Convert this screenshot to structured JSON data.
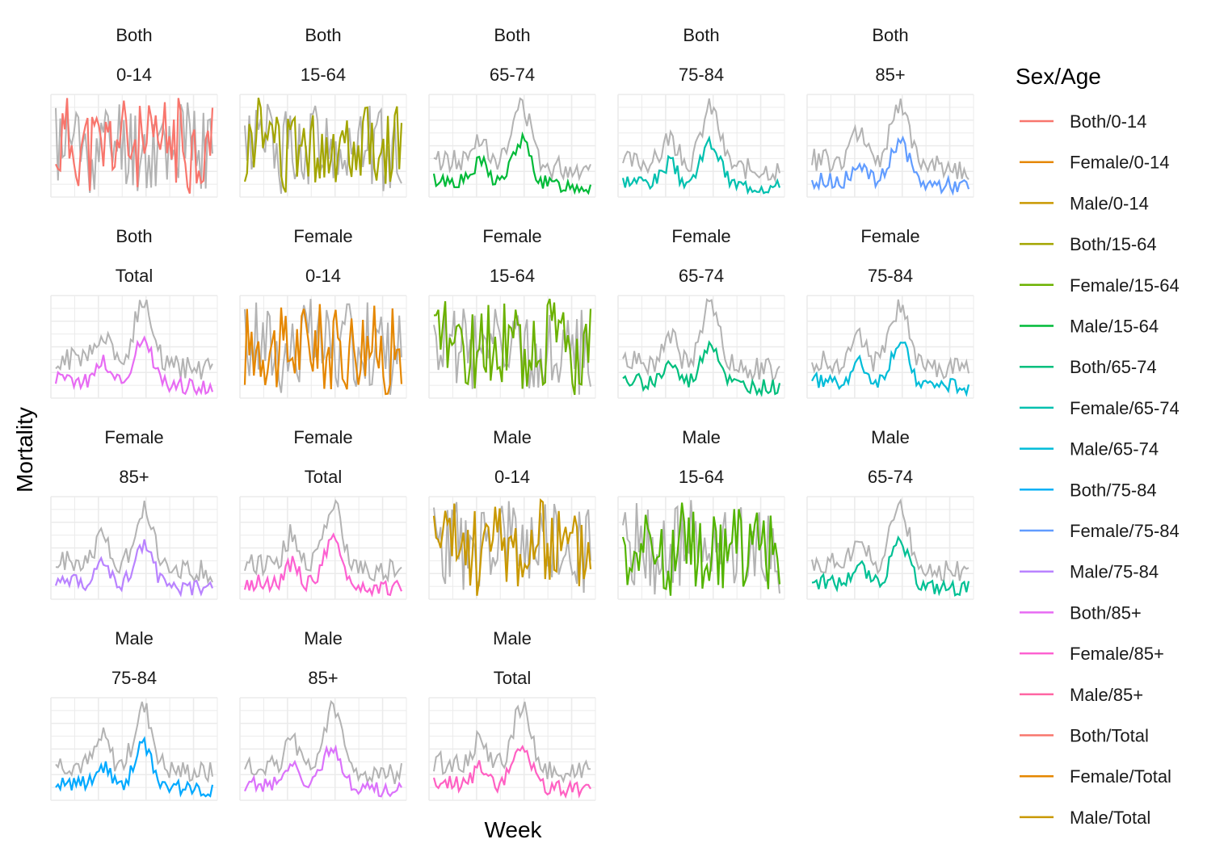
{
  "chart_data": {
    "type": "line",
    "xlabel": "Week",
    "ylabel": "Mortality",
    "grid": true,
    "legend": {
      "title": "Sex/Age",
      "position": "right",
      "entries": [
        {
          "label": "Both/0-14",
          "color": "#F8766D"
        },
        {
          "label": "Female/0-14",
          "color": "#E58700"
        },
        {
          "label": "Male/0-14",
          "color": "#C99800"
        },
        {
          "label": "Both/15-64",
          "color": "#A3A500"
        },
        {
          "label": "Female/15-64",
          "color": "#6BB100"
        },
        {
          "label": "Male/15-64",
          "color": "#00BA38"
        },
        {
          "label": "Both/65-74",
          "color": "#00BF7D"
        },
        {
          "label": "Female/65-74",
          "color": "#00C0AF"
        },
        {
          "label": "Male/65-74",
          "color": "#00BCD8"
        },
        {
          "label": "Both/75-84",
          "color": "#00B0F6"
        },
        {
          "label": "Female/75-84",
          "color": "#619CFF"
        },
        {
          "label": "Male/75-84",
          "color": "#B983FF"
        },
        {
          "label": "Both/85+",
          "color": "#E76BF3"
        },
        {
          "label": "Female/85+",
          "color": "#FD61D1"
        },
        {
          "label": "Male/85+",
          "color": "#FF67A4"
        },
        {
          "label": "Both/Total",
          "color": "#F8766D"
        },
        {
          "label": "Female/Total",
          "color": "#E58700"
        },
        {
          "label": "Male/Total",
          "color": "#C99800"
        }
      ]
    },
    "reference_series_color": "#B3B3B3",
    "panels": [
      {
        "strip1": "Both",
        "strip2": "0-14",
        "color": "#F8766D",
        "pattern": "noisy",
        "seed": 11
      },
      {
        "strip1": "Both",
        "strip2": "15-64",
        "color": "#A3A500",
        "pattern": "noisy",
        "seed": 12
      },
      {
        "strip1": "Both",
        "strip2": "65-74",
        "color": "#00BA38",
        "pattern": "seasonal",
        "seed": 13
      },
      {
        "strip1": "Both",
        "strip2": "75-84",
        "color": "#00C0AF",
        "pattern": "seasonal",
        "seed": 14
      },
      {
        "strip1": "Both",
        "strip2": "85+",
        "color": "#619CFF",
        "pattern": "seasonal",
        "seed": 15
      },
      {
        "strip1": "Both",
        "strip2": "Total",
        "color": "#E76BF3",
        "pattern": "seasonal",
        "seed": 16
      },
      {
        "strip1": "Female",
        "strip2": "0-14",
        "color": "#E58700",
        "pattern": "noisy",
        "seed": 17
      },
      {
        "strip1": "Female",
        "strip2": "15-64",
        "color": "#6BB100",
        "pattern": "noisy",
        "seed": 18
      },
      {
        "strip1": "Female",
        "strip2": "65-74",
        "color": "#00BF7D",
        "pattern": "seasonal",
        "seed": 19
      },
      {
        "strip1": "Female",
        "strip2": "75-84",
        "color": "#00BCD8",
        "pattern": "seasonal",
        "seed": 20
      },
      {
        "strip1": "Female",
        "strip2": "85+",
        "color": "#B983FF",
        "pattern": "seasonal",
        "seed": 21
      },
      {
        "strip1": "Female",
        "strip2": "Total",
        "color": "#FD61D1",
        "pattern": "seasonal",
        "seed": 22
      },
      {
        "strip1": "Male",
        "strip2": "0-14",
        "color": "#C99800",
        "pattern": "noisy",
        "seed": 23
      },
      {
        "strip1": "Male",
        "strip2": "15-64",
        "color": "#53B400",
        "pattern": "noisy",
        "seed": 24
      },
      {
        "strip1": "Male",
        "strip2": "65-74",
        "color": "#00C094",
        "pattern": "seasonal",
        "seed": 25
      },
      {
        "strip1": "Male",
        "strip2": "75-84",
        "color": "#00A9FF",
        "pattern": "seasonal",
        "seed": 26
      },
      {
        "strip1": "Male",
        "strip2": "85+",
        "color": "#DB72FB",
        "pattern": "seasonal",
        "seed": 27
      },
      {
        "strip1": "Male",
        "strip2": "Total",
        "color": "#FF61C3",
        "pattern": "seasonal",
        "seed": 28
      }
    ]
  }
}
